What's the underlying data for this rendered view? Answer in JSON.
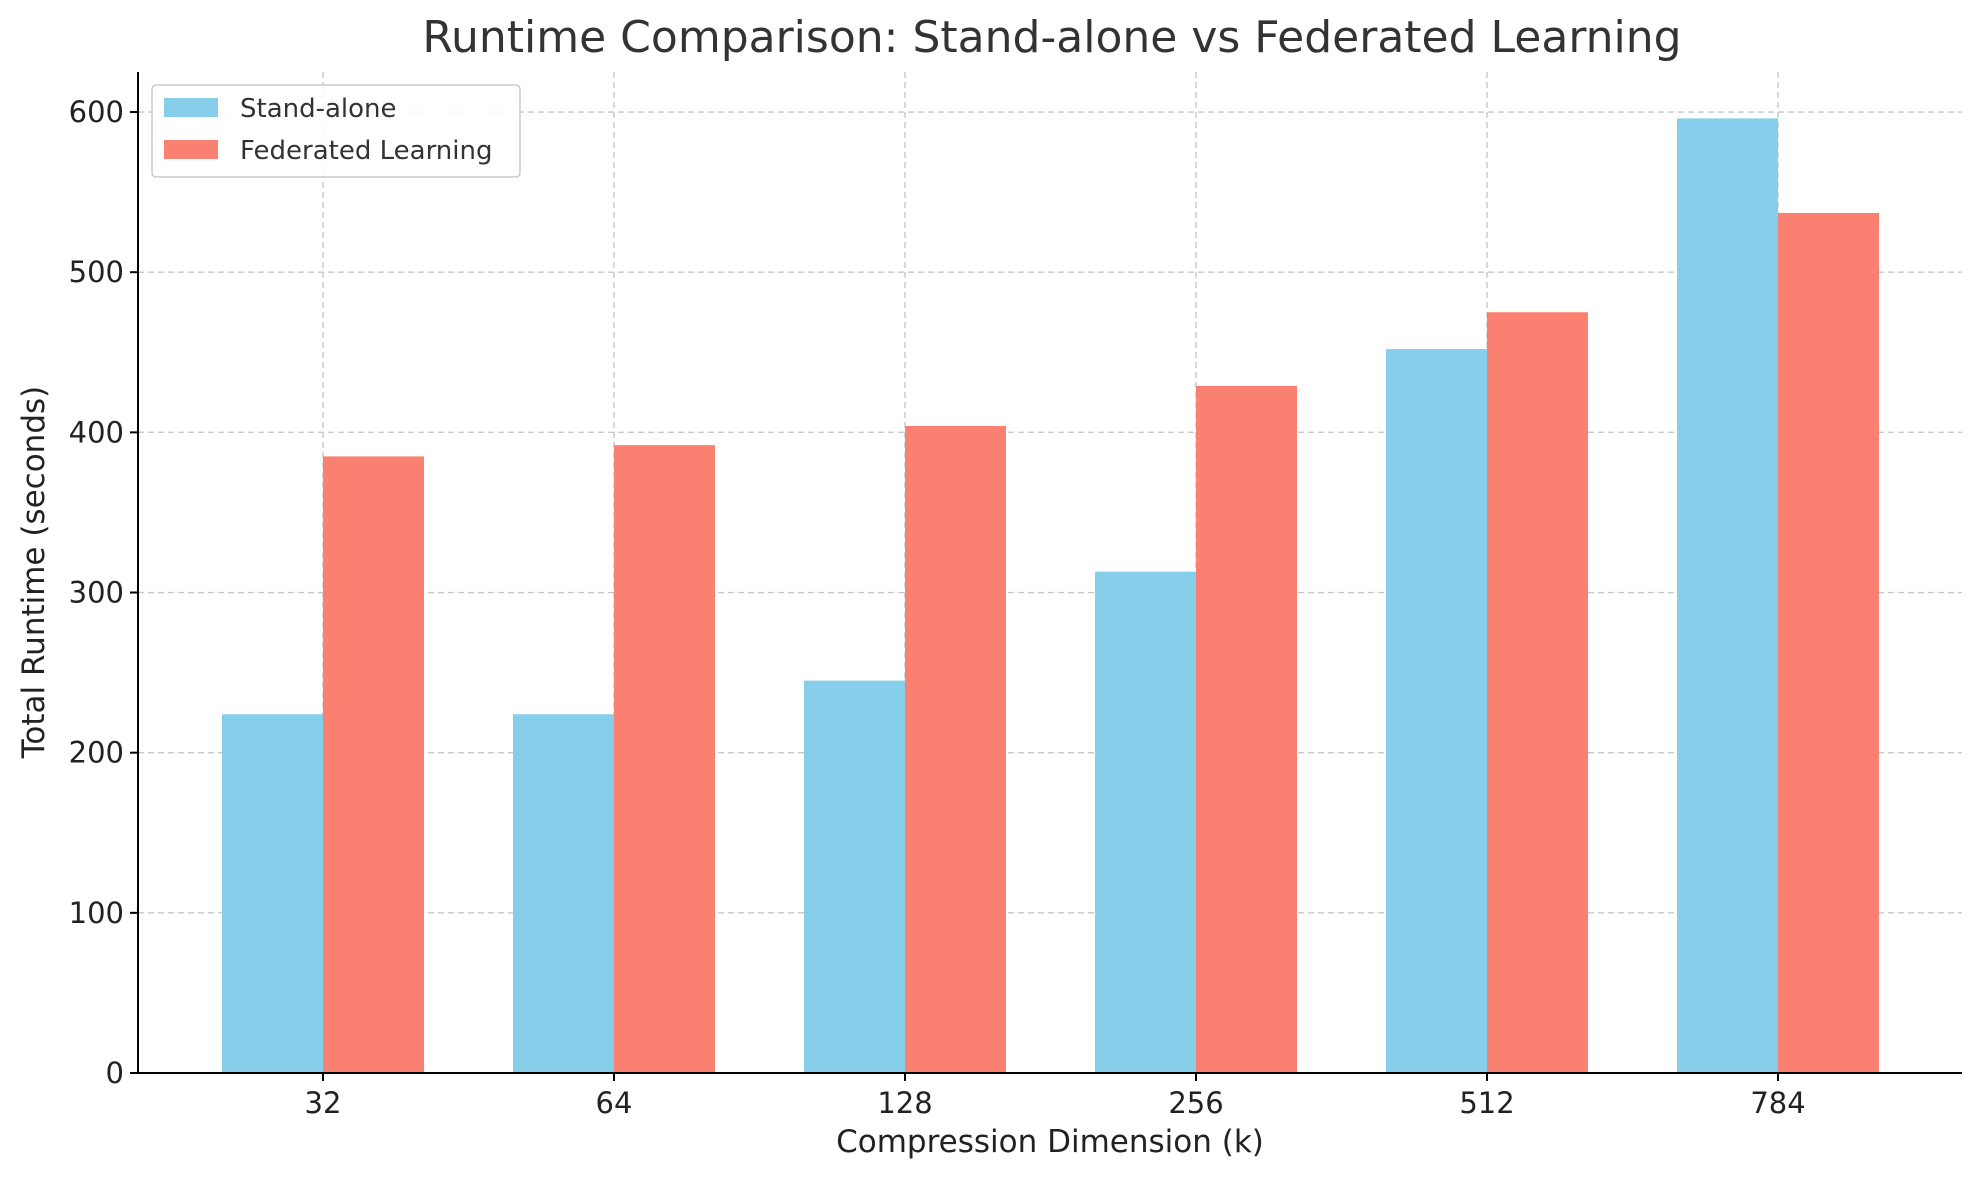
{
  "chart_data": {
    "type": "bar",
    "title": "Runtime Comparison: Stand-alone vs Federated Learning",
    "xlabel": "Compression Dimension (k)",
    "ylabel": "Total Runtime (seconds)",
    "categories": [
      "32",
      "64",
      "128",
      "256",
      "512",
      "784"
    ],
    "series": [
      {
        "name": "Stand-alone",
        "color": "#87CEEB",
        "values": [
          224,
          224,
          245,
          313,
          452,
          596
        ]
      },
      {
        "name": "Federated Learning",
        "color": "#FA8072",
        "values": [
          385,
          392,
          404,
          429,
          475,
          537
        ]
      }
    ],
    "ylim": [
      0,
      625
    ],
    "yticks": [
      0,
      100,
      200,
      300,
      400,
      500,
      600
    ],
    "grid": true,
    "legend": "top-left"
  }
}
